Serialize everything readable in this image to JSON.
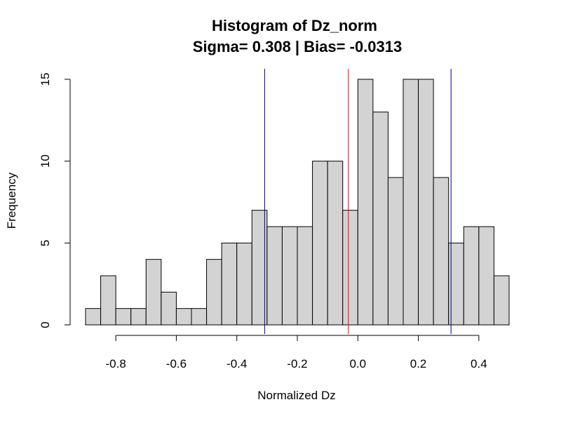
{
  "chart_data": {
    "type": "bar",
    "title": "Histogram of Dz_norm",
    "subtitle": "Sigma= 0.308 | Bias= -0.0313",
    "xlabel": "Normalized Dz",
    "ylabel": "Frequency",
    "xlim": [
      -0.9,
      0.5
    ],
    "ylim": [
      0,
      15
    ],
    "bin_width": 0.05,
    "bin_start": -0.9,
    "x_ticks": [
      -0.8,
      -0.6,
      -0.4,
      -0.2,
      0.0,
      0.2,
      0.4
    ],
    "x_tick_labels": [
      "-0.8",
      "-0.6",
      "-0.4",
      "-0.2",
      "0.0",
      "0.2",
      "0.4"
    ],
    "y_ticks": [
      0,
      5,
      10,
      15
    ],
    "y_tick_labels": [
      "0",
      "5",
      "10",
      "15"
    ],
    "values": [
      1,
      3,
      1,
      1,
      4,
      2,
      1,
      1,
      4,
      5,
      5,
      7,
      6,
      6,
      6,
      10,
      10,
      7,
      15,
      13,
      9,
      15,
      15,
      9,
      5,
      6,
      6,
      3
    ],
    "bar_color": "#d3d3d3",
    "grid": false,
    "vertical_lines": [
      {
        "x": -0.0313,
        "color": "#ff0000"
      },
      {
        "x": -0.308,
        "color": "#00008b"
      },
      {
        "x": 0.308,
        "color": "#00008b"
      }
    ]
  }
}
